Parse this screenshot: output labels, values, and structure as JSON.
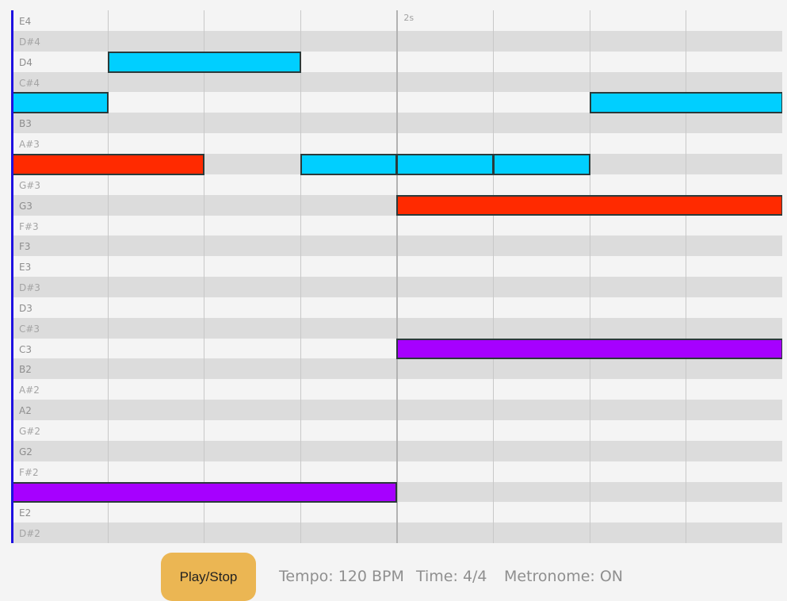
{
  "piano_roll": {
    "time_marker_label": "2s",
    "pitches": [
      "E4",
      "D#4",
      "D4",
      "C#4",
      "C4",
      "B3",
      "A#3",
      "A3",
      "G#3",
      "G3",
      "F#3",
      "F3",
      "E3",
      "D#3",
      "D3",
      "C#3",
      "C3",
      "B2",
      "A#2",
      "A2",
      "G#2",
      "G2",
      "F#2",
      "F2",
      "E2",
      "D#2"
    ],
    "visible_pitch_labels": [
      "E4",
      "D#4",
      "D4",
      "C#4",
      "B3",
      "A#3",
      "G#3",
      "G3",
      "F#3",
      "F3",
      "E3",
      "D#3",
      "D3",
      "C#3",
      "C3",
      "B2",
      "A#2",
      "A2",
      "G#2",
      "G2",
      "F#2",
      "E2",
      "D#2"
    ],
    "beats_visible": 8,
    "notes": [
      {
        "pitch": "D4",
        "start_beat": 1,
        "length_beats": 2,
        "color": "#00cfff"
      },
      {
        "pitch": "C4",
        "start_beat": 0,
        "length_beats": 1,
        "color": "#00cfff"
      },
      {
        "pitch": "C4",
        "start_beat": 6,
        "length_beats": 2,
        "color": "#00cfff"
      },
      {
        "pitch": "A3",
        "start_beat": 0,
        "length_beats": 2,
        "color": "#ff2a00"
      },
      {
        "pitch": "A3",
        "start_beat": 3,
        "length_beats": 1,
        "color": "#00cfff"
      },
      {
        "pitch": "A3",
        "start_beat": 4,
        "length_beats": 1,
        "color": "#00cfff"
      },
      {
        "pitch": "A3",
        "start_beat": 5,
        "length_beats": 1,
        "color": "#00cfff"
      },
      {
        "pitch": "G3",
        "start_beat": 4,
        "length_beats": 4,
        "color": "#ff2a00"
      },
      {
        "pitch": "C3",
        "start_beat": 4,
        "length_beats": 4,
        "color": "#a600ff"
      },
      {
        "pitch": "F2",
        "start_beat": 0,
        "length_beats": 4,
        "color": "#a600ff"
      }
    ]
  },
  "controls": {
    "play_stop_label": "Play/Stop",
    "tempo_text": "Tempo: 120 BPM",
    "time_text": "Time: 4/4",
    "metronome_text": "Metronome: ON"
  }
}
